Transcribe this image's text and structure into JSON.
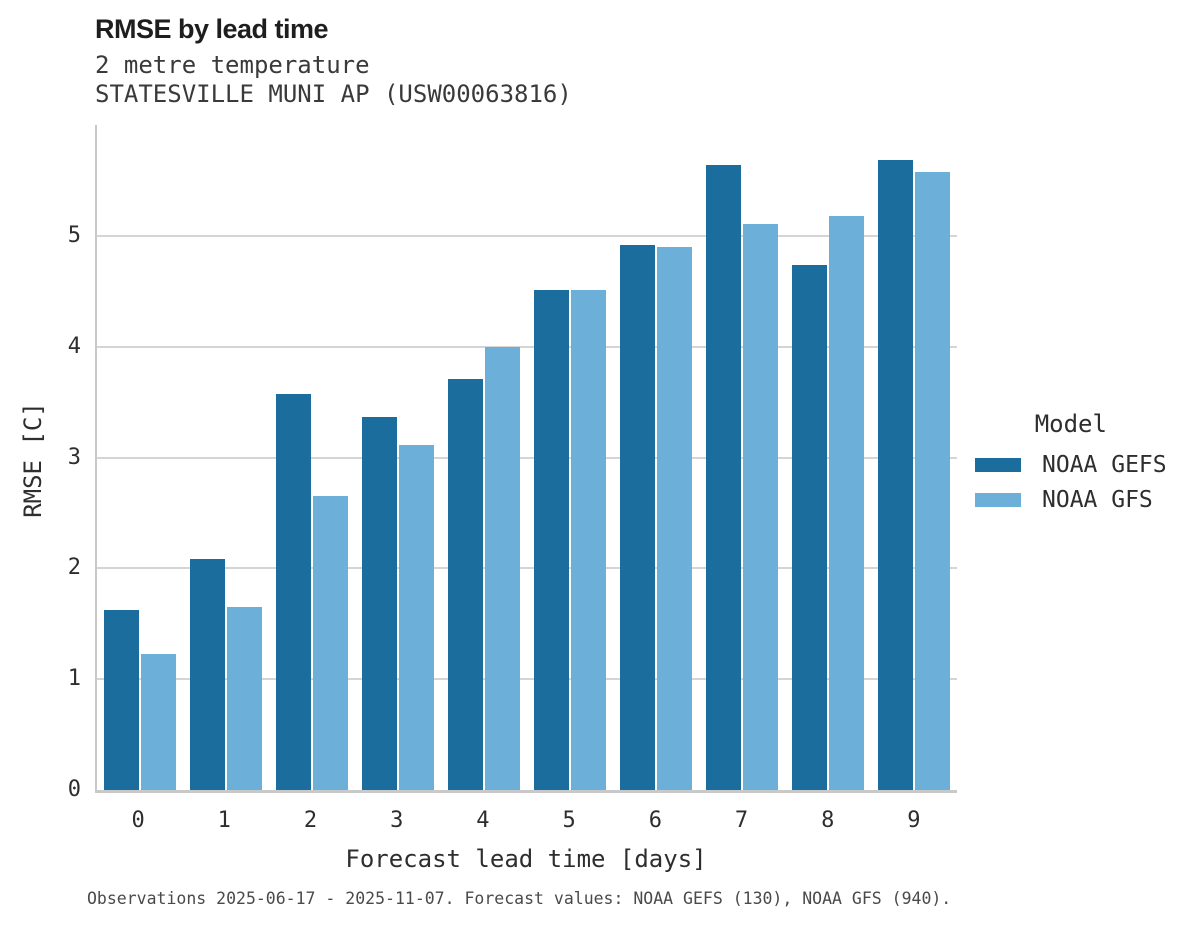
{
  "header": {
    "title": "RMSE by lead time",
    "subtitle1": "2 metre temperature",
    "subtitle2": "STATESVILLE MUNI AP (USW00063816)"
  },
  "chart_data": {
    "type": "bar",
    "title": "RMSE by lead time",
    "subtitle": [
      "2 metre temperature",
      "STATESVILLE MUNI AP (USW00063816)"
    ],
    "categories": [
      "0",
      "1",
      "2",
      "3",
      "4",
      "5",
      "6",
      "7",
      "8",
      "9"
    ],
    "series": [
      {
        "name": "NOAA GEFS",
        "color": "#1b6d9e",
        "values": [
          1.62,
          2.08,
          3.57,
          3.37,
          3.71,
          4.51,
          4.92,
          5.64,
          4.74,
          5.68
        ]
      },
      {
        "name": "NOAA GFS",
        "color": "#6cb0d9",
        "values": [
          1.23,
          1.65,
          2.65,
          3.11,
          4.0,
          4.51,
          4.9,
          5.11,
          5.18,
          5.58
        ]
      }
    ],
    "xlabel": "Forecast lead time [days]",
    "ylabel": "RMSE [C]",
    "ylim": [
      0,
      6
    ],
    "yticks": [
      0,
      1,
      2,
      3,
      4,
      5
    ],
    "grid": true,
    "legend": {
      "title": "Model",
      "position": "right"
    }
  },
  "footer": {
    "caption": "Observations 2025-06-17 - 2025-11-07. Forecast values: NOAA GEFS (130), NOAA GFS (940)."
  }
}
